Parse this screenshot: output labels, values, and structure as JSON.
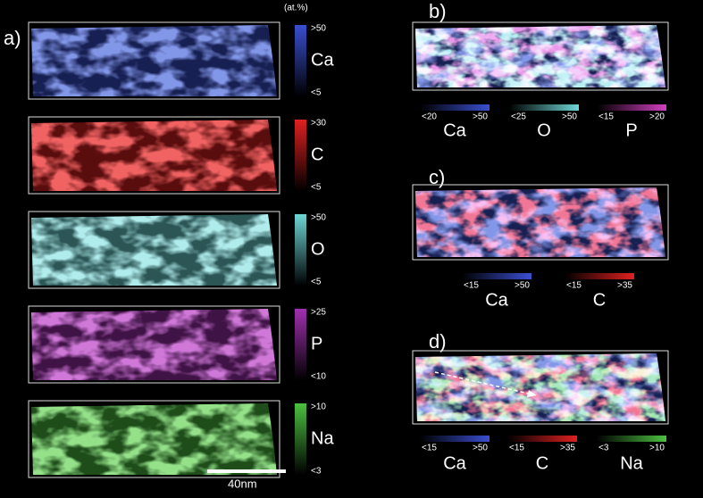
{
  "panels": [
    {
      "label": "a)",
      "unit": "(at.%)",
      "scale_bar": "40nm",
      "maps": [
        {
          "element": "Ca",
          "max": ">50",
          "min": "<5",
          "color": "#3a4fd0"
        },
        {
          "element": "C",
          "max": ">30",
          "min": "<5",
          "color": "#e02020"
        },
        {
          "element": "O",
          "max": ">50",
          "min": "<5",
          "color": "#6fd6d6"
        },
        {
          "element": "P",
          "max": ">25",
          "min": "<10",
          "color": "#a030b0"
        },
        {
          "element": "Na",
          "max": ">10",
          "min": "<3",
          "color": "#4cc040"
        }
      ]
    },
    {
      "label": "b)",
      "legends": [
        {
          "element": "Ca",
          "min": "<20",
          "max": ">50",
          "color": "#3a4fd0"
        },
        {
          "element": "O",
          "min": "<25",
          "max": ">50",
          "color": "#6fd6d6"
        },
        {
          "element": "P",
          "min": "<15",
          "max": ">20",
          "color": "#d040c0"
        }
      ]
    },
    {
      "label": "c)",
      "legends": [
        {
          "element": "Ca",
          "min": "<15",
          "max": ">50",
          "color": "#3a4fd0"
        },
        {
          "element": "C",
          "min": "<15",
          "max": ">35",
          "color": "#e02020"
        }
      ]
    },
    {
      "label": "d)",
      "legends": [
        {
          "element": "Ca",
          "min": "<15",
          "max": ">50",
          "color": "#3a4fd0"
        },
        {
          "element": "C",
          "min": "<15",
          "max": ">35",
          "color": "#e02020"
        },
        {
          "element": "Na",
          "min": "<3",
          "max": ">10",
          "color": "#4cc040"
        }
      ]
    }
  ]
}
